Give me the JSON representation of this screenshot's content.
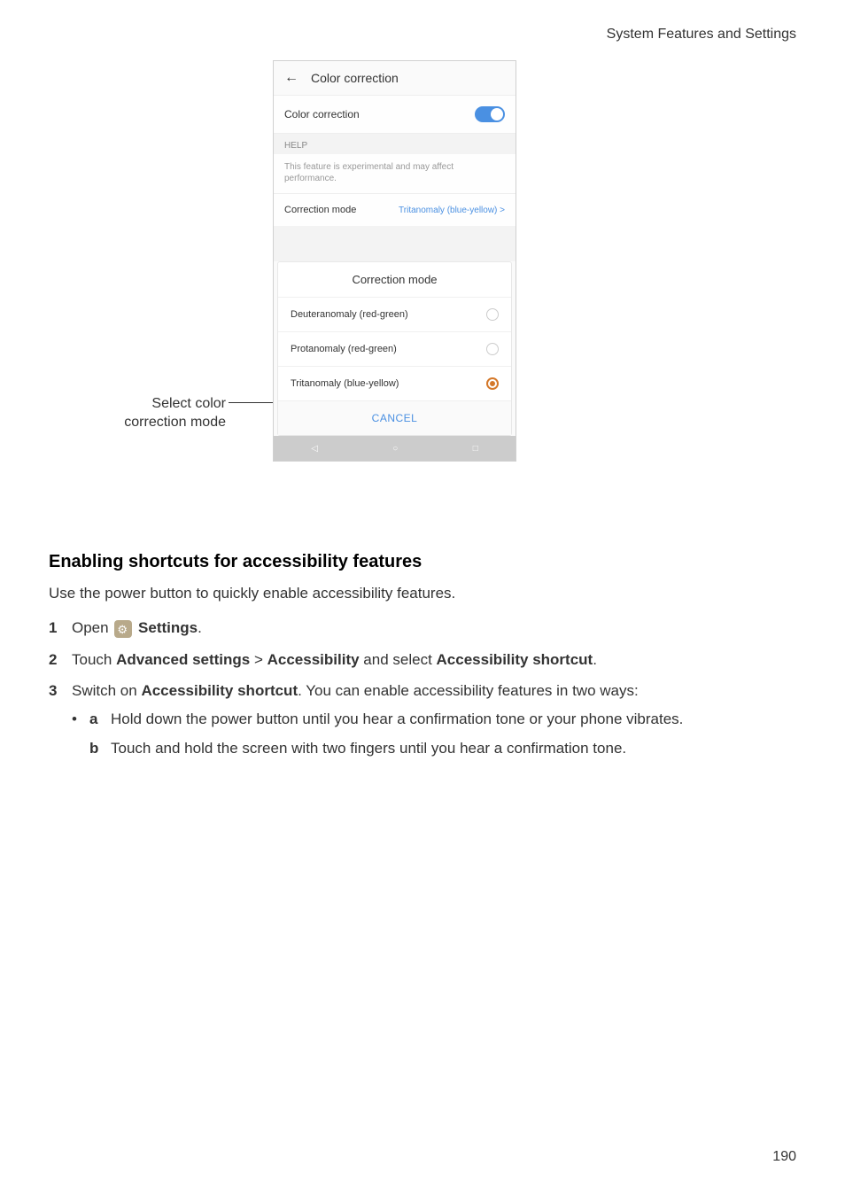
{
  "header_text": "System Features and Settings",
  "callout": {
    "line1": "Select color",
    "line2": "correction mode"
  },
  "phone": {
    "title": "Color correction",
    "toggle_label": "Color correction",
    "help_header": "HELP",
    "help_text": "This feature is experimental and may affect performance.",
    "mode_label": "Correction mode",
    "mode_value": "Tritanomaly (blue-yellow)  >",
    "dialog": {
      "title": "Correction mode",
      "options": [
        {
          "label": "Deuteranomaly (red-green)",
          "selected": false
        },
        {
          "label": "Protanomaly (red-green)",
          "selected": false
        },
        {
          "label": "Tritanomaly (blue-yellow)",
          "selected": true
        }
      ],
      "cancel": "CANCEL"
    }
  },
  "doc": {
    "title": "Enabling shortcuts for accessibility features",
    "intro": "Use the power button to quickly enable accessibility features.",
    "step1_a": "Open ",
    "step1_b": "Settings",
    "step1_c": ".",
    "step2_a": "Touch ",
    "step2_b": "Advanced settings",
    "step2_c": " > ",
    "step2_d": "Accessibility",
    "step2_e": " and select ",
    "step2_f": "Accessibility shortcut",
    "step2_g": ".",
    "step3_a": "Switch on ",
    "step3_b": "Accessibility shortcut",
    "step3_c": ". You can enable accessibility features in two ways:",
    "sub_a": "Hold down the power button until you hear a confirmation tone or your phone vibrates.",
    "sub_b": "Touch and hold the screen with two fingers until you hear a confirmation tone."
  },
  "page_number": "190",
  "colors": {
    "accent_blue": "#4a90e2",
    "accent_orange": "#d4782a",
    "text_dark": "#333333",
    "text_muted": "#999999"
  }
}
